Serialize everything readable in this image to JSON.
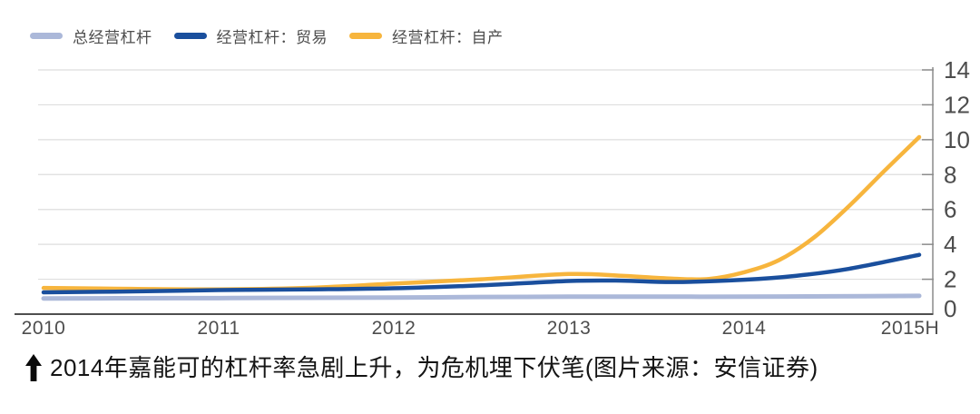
{
  "caption": {
    "text": "2014年嘉能可的杠杆率急剧上升，为危机埋下伏笔(图片来源：安信证券)"
  },
  "chart_data": {
    "type": "line",
    "title": "",
    "x_labels": [
      "2010",
      "2011",
      "2012",
      "2013",
      "2014",
      "2015H"
    ],
    "y_ticks": [
      0,
      2,
      4,
      6,
      8,
      10,
      12,
      14
    ],
    "ylim": [
      0,
      14
    ],
    "y_axis_side": "right",
    "grid": "horizontal",
    "legend_position": "top-left",
    "colors": {
      "gridline": "#dedede",
      "bottom_axis": "#4f4f4f",
      "right_axis": "#8c8c8c",
      "tick_label": "#4d4d4d"
    },
    "series": [
      {
        "name": "总经营杠杆",
        "color": "#abb8d9",
        "line_width": 5,
        "values": [
          0.9,
          0.92,
          0.95,
          1.0,
          1.0,
          1.05
        ],
        "points": [
          [
            0,
            0.9
          ],
          [
            0.5,
            0.91
          ],
          [
            1,
            0.92
          ],
          [
            1.5,
            0.94
          ],
          [
            2,
            0.95
          ],
          [
            2.5,
            0.98
          ],
          [
            3,
            1.0
          ],
          [
            3.5,
            1.0
          ],
          [
            4,
            1.0
          ],
          [
            4.5,
            1.02
          ],
          [
            5,
            1.05
          ]
        ]
      },
      {
        "name": "经营杠杆：贸易",
        "color": "#1a4f9d",
        "line_width": 4.5,
        "values": [
          1.25,
          1.38,
          1.48,
          1.9,
          1.97,
          3.4
        ],
        "points": [
          [
            0,
            1.25
          ],
          [
            0.5,
            1.3
          ],
          [
            1,
            1.38
          ],
          [
            1.5,
            1.42
          ],
          [
            2,
            1.48
          ],
          [
            2.5,
            1.65
          ],
          [
            3,
            1.9
          ],
          [
            3.3,
            1.92
          ],
          [
            3.6,
            1.84
          ],
          [
            4,
            1.97
          ],
          [
            4.3,
            2.2
          ],
          [
            4.6,
            2.6
          ],
          [
            5,
            3.4
          ]
        ]
      },
      {
        "name": "经营杠杆：自产",
        "color": "#f7b53d",
        "line_width": 4.5,
        "values": [
          1.5,
          1.42,
          1.75,
          2.3,
          2.4,
          10.15
        ],
        "points": [
          [
            0,
            1.5
          ],
          [
            0.5,
            1.45
          ],
          [
            1,
            1.42
          ],
          [
            1.5,
            1.5
          ],
          [
            2,
            1.75
          ],
          [
            2.5,
            2.0
          ],
          [
            3,
            2.3
          ],
          [
            3.3,
            2.2
          ],
          [
            3.6,
            2.03
          ],
          [
            3.8,
            2.02
          ],
          [
            4,
            2.4
          ],
          [
            4.2,
            3.1
          ],
          [
            4.4,
            4.4
          ],
          [
            4.6,
            6.2
          ],
          [
            4.8,
            8.2
          ],
          [
            5,
            10.15
          ]
        ]
      }
    ]
  }
}
